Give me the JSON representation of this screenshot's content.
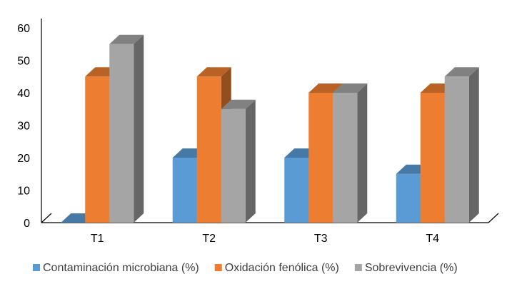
{
  "chart_data": {
    "type": "bar",
    "style": "3d-clustered-column",
    "categories": [
      "T1",
      "T2",
      "T3",
      "T4"
    ],
    "series": [
      {
        "name": "Contaminación microbiana (%)",
        "values": [
          0,
          20,
          20,
          15
        ],
        "color": "#5B9BD5"
      },
      {
        "name": "Oxidación fenólica (%)",
        "values": [
          45,
          45,
          40,
          40
        ],
        "color": "#ED7D31"
      },
      {
        "name": "Sobrevivencia (%)",
        "values": [
          55,
          35,
          40,
          45
        ],
        "color": "#A5A5A5"
      }
    ],
    "yticks": [
      "0",
      "10",
      "20",
      "30",
      "40",
      "50",
      "60"
    ],
    "ylim": [
      0,
      60
    ],
    "grid": false,
    "legend_position": "bottom"
  }
}
